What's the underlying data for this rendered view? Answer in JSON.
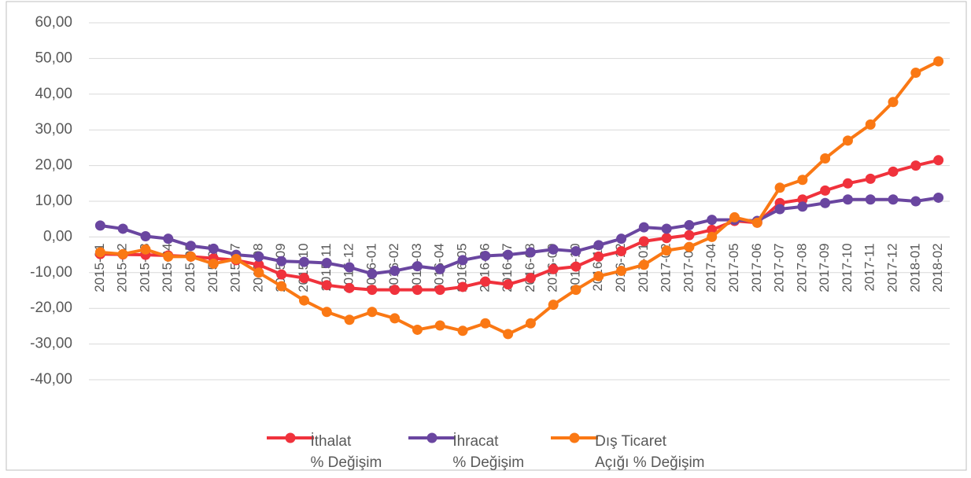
{
  "chart_data": {
    "type": "line",
    "categories": [
      "2015-01",
      "2015-02",
      "2015-03",
      "2015-04",
      "2015-05",
      "2015-06",
      "2015-07",
      "2015-08",
      "2015-09",
      "2015-10",
      "2015-11",
      "2015-12",
      "2016-01",
      "2016-02",
      "2016-03",
      "2016-04",
      "2016-05",
      "2016-06",
      "2016-07",
      "2016-08",
      "2016-09",
      "2016-10",
      "2016-11",
      "2016-12",
      "2017-01",
      "2017-02",
      "2017-03",
      "2017-04",
      "2017-05",
      "2017-06",
      "2017-07",
      "2017-08",
      "2017-09",
      "2017-10",
      "2017-11",
      "2017-12",
      "2018-01",
      "2018-02"
    ],
    "series": [
      {
        "name": "İthalat\n% Değişim",
        "color": "#f0323c",
        "values": [
          -4.8,
          -4.9,
          -5.0,
          -5.2,
          -5.5,
          -6.0,
          -6.5,
          -7.8,
          -10.5,
          -11.5,
          -13.5,
          -14.3,
          -14.8,
          -14.8,
          -14.8,
          -14.8,
          -14.0,
          -12.5,
          -13.3,
          -11.5,
          -9.0,
          -8.3,
          -5.5,
          -4.0,
          -1.2,
          -0.3,
          0.5,
          2.0,
          4.5,
          4.0,
          9.5,
          10.5,
          13.0,
          15.0,
          16.3,
          18.3,
          20.0,
          21.5
        ]
      },
      {
        "name": "İhracat\n% Değişim",
        "color": "#6a46a0",
        "values": [
          3.2,
          2.3,
          0.2,
          -0.5,
          -2.5,
          -3.3,
          -5.0,
          -5.5,
          -6.8,
          -7.0,
          -7.3,
          -8.5,
          -10.3,
          -9.5,
          -8.2,
          -9.0,
          -6.5,
          -5.3,
          -5.0,
          -4.3,
          -3.5,
          -4.0,
          -2.3,
          -0.5,
          2.7,
          2.3,
          3.3,
          4.8,
          4.8,
          4.5,
          7.8,
          8.5,
          9.5,
          10.5,
          10.5,
          10.5,
          10.0,
          11.0
        ]
      },
      {
        "name": "Dış Ticaret\nAçığı % Değişim",
        "color": "#fa7814",
        "values": [
          -4.3,
          -4.8,
          -3.5,
          -5.5,
          -5.5,
          -7.5,
          -6.2,
          -10.0,
          -13.8,
          -17.8,
          -21.0,
          -23.2,
          -21.0,
          -22.8,
          -26.0,
          -24.8,
          -26.3,
          -24.2,
          -27.2,
          -24.2,
          -19.0,
          -14.8,
          -11.0,
          -9.5,
          -7.8,
          -3.8,
          -2.8,
          0.0,
          5.5,
          4.0,
          13.8,
          16.0,
          22.0,
          27.0,
          31.5,
          37.8,
          46.0,
          49.2
        ]
      }
    ],
    "ylim": [
      -40,
      60
    ],
    "yticks": [
      {
        "value": -40,
        "label": "-40,00"
      },
      {
        "value": -30,
        "label": "-30,00"
      },
      {
        "value": -20,
        "label": "-20,00"
      },
      {
        "value": -10,
        "label": "-10,00"
      },
      {
        "value": 0,
        "label": "0,00"
      },
      {
        "value": 10,
        "label": "10,00"
      },
      {
        "value": 20,
        "label": "20,00"
      },
      {
        "value": 30,
        "label": "30,00"
      },
      {
        "value": 40,
        "label": "40,00"
      },
      {
        "value": 50,
        "label": "50,00"
      },
      {
        "value": 60,
        "label": "60,00"
      }
    ],
    "grid": true,
    "legend": "bottom"
  }
}
